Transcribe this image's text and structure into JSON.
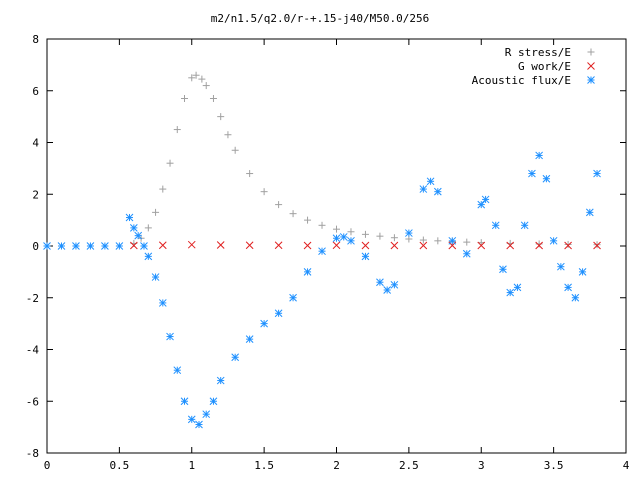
{
  "chart_data": {
    "type": "scatter",
    "title": "m2/n1.5/q2.0/r-+.15-j40/M50.0/256",
    "xlabel": "",
    "ylabel": "",
    "xlim": [
      0,
      4
    ],
    "ylim": [
      -8,
      8
    ],
    "xticks": [
      "0",
      "0.5",
      "1",
      "1.5",
      "2",
      "2.5",
      "3",
      "3.5",
      "4"
    ],
    "yticks": [
      "-8",
      "-6",
      "-4",
      "-2",
      "0",
      "2",
      "4",
      "6",
      "8"
    ],
    "grid": false,
    "legend_position": "top-right",
    "series": [
      {
        "name": "R stress/E",
        "marker": "plus",
        "color": "#a0a0a0",
        "x": [
          0.6,
          0.65,
          0.7,
          0.75,
          0.8,
          0.85,
          0.9,
          0.95,
          1.0,
          1.03,
          1.07,
          1.1,
          1.15,
          1.2,
          1.25,
          1.3,
          1.4,
          1.5,
          1.6,
          1.7,
          1.8,
          1.9,
          2.0,
          2.1,
          2.2,
          2.3,
          2.4,
          2.5,
          2.6,
          2.7,
          2.8,
          2.9,
          3.0,
          3.2,
          3.4,
          3.6,
          3.8
        ],
        "y": [
          0.1,
          0.3,
          0.7,
          1.3,
          2.2,
          3.2,
          4.5,
          5.7,
          6.5,
          6.6,
          6.45,
          6.2,
          5.7,
          5.0,
          4.3,
          3.7,
          2.8,
          2.1,
          1.6,
          1.25,
          1.0,
          0.8,
          0.65,
          0.55,
          0.45,
          0.38,
          0.32,
          0.27,
          0.23,
          0.2,
          0.17,
          0.15,
          0.13,
          0.1,
          0.08,
          0.06,
          0.05
        ]
      },
      {
        "name": "G work/E",
        "marker": "cross",
        "color": "#e02020",
        "x": [
          0.6,
          0.8,
          1.0,
          1.2,
          1.4,
          1.6,
          1.8,
          2.0,
          2.2,
          2.4,
          2.6,
          2.8,
          3.0,
          3.2,
          3.4,
          3.6,
          3.8
        ],
        "y": [
          0.02,
          0.03,
          0.05,
          0.04,
          0.03,
          0.03,
          0.02,
          0.03,
          0.02,
          0.02,
          0.02,
          0.02,
          0.02,
          0.02,
          0.02,
          0.02,
          0.02
        ]
      },
      {
        "name": "Acoustic flux/E",
        "marker": "star",
        "color": "#1e90ff",
        "x": [
          0.0,
          0.1,
          0.2,
          0.3,
          0.4,
          0.5,
          0.57,
          0.6,
          0.63,
          0.67,
          0.7,
          0.75,
          0.8,
          0.85,
          0.9,
          0.95,
          1.0,
          1.05,
          1.1,
          1.15,
          1.2,
          1.3,
          1.4,
          1.5,
          1.6,
          1.7,
          1.8,
          1.9,
          2.0,
          2.05,
          2.1,
          2.2,
          2.3,
          2.35,
          2.4,
          2.5,
          2.6,
          2.65,
          2.7,
          2.8,
          2.9,
          3.0,
          3.03,
          3.1,
          3.15,
          3.2,
          3.25,
          3.3,
          3.35,
          3.4,
          3.45,
          3.5,
          3.55,
          3.6,
          3.65,
          3.7,
          3.75,
          3.8
        ],
        "y": [
          0.0,
          0.0,
          0.0,
          0.0,
          0.0,
          0.0,
          1.1,
          0.7,
          0.4,
          0.0,
          -0.4,
          -1.2,
          -2.2,
          -3.5,
          -4.8,
          -6.0,
          -6.7,
          -6.9,
          -6.5,
          -6.0,
          -5.2,
          -4.3,
          -3.6,
          -3.0,
          -2.6,
          -2.0,
          -1.0,
          -0.2,
          0.3,
          0.35,
          0.2,
          -0.4,
          -1.4,
          -1.7,
          -1.5,
          0.5,
          2.2,
          2.5,
          2.1,
          0.2,
          -0.3,
          1.6,
          1.8,
          0.8,
          -0.9,
          -1.8,
          -1.6,
          0.8,
          2.8,
          3.5,
          2.6,
          0.2,
          -0.8,
          -1.6,
          -2.0,
          -1.0,
          1.3,
          2.8
        ]
      }
    ]
  }
}
